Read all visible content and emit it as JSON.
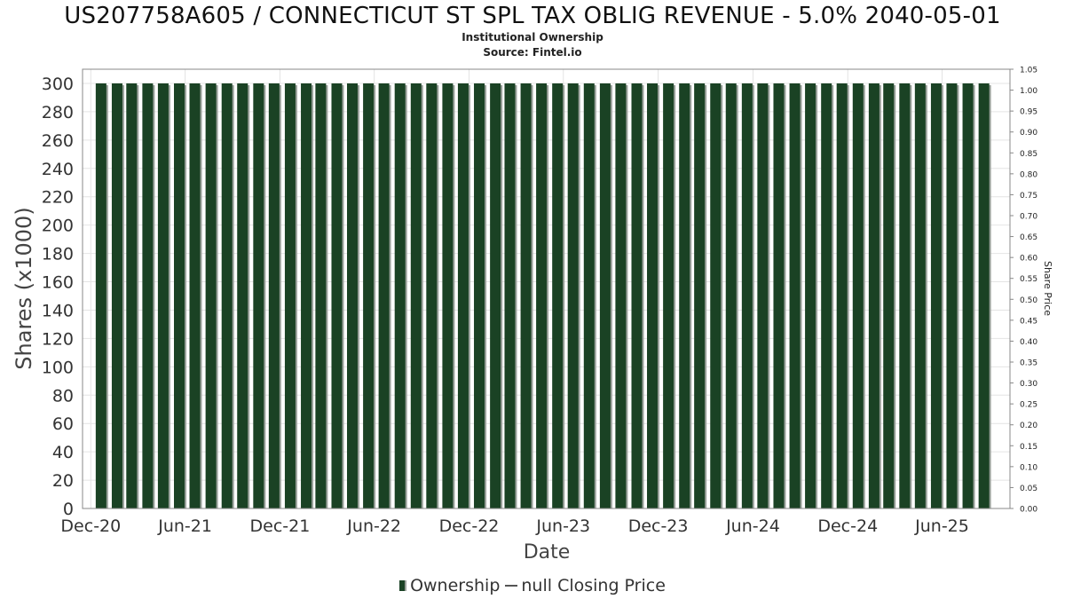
{
  "title": "US207758A605 / CONNECTICUT ST SPL TAX OBLIG REVENUE - 5.0% 2040-05-01",
  "subtitle": "Institutional Ownership",
  "source": "Source: Fintel.io",
  "legend": {
    "ownership": "Ownership",
    "price": "null Closing Price"
  },
  "colors": {
    "bar": "#1a4224",
    "bar_shadow": "#9aa19b",
    "grid": "#e4e4e4",
    "frame": "#888888"
  },
  "chart_data": {
    "type": "bar",
    "xlabel": "Date",
    "ylabel": "Shares (x1000)",
    "y2label": "Share Price",
    "ylim": [
      0,
      310
    ],
    "y2lim": [
      0,
      1.05
    ],
    "x_range": [
      "2020-11-15",
      "2025-10-10"
    ],
    "x_ticks": [
      {
        "date": "2020-12-01",
        "label": "Dec-20"
      },
      {
        "date": "2021-06-01",
        "label": "Jun-21"
      },
      {
        "date": "2021-12-01",
        "label": "Dec-21"
      },
      {
        "date": "2022-06-01",
        "label": "Jun-22"
      },
      {
        "date": "2022-12-01",
        "label": "Dec-22"
      },
      {
        "date": "2023-06-01",
        "label": "Jun-23"
      },
      {
        "date": "2023-12-01",
        "label": "Dec-23"
      },
      {
        "date": "2024-06-01",
        "label": "Jun-24"
      },
      {
        "date": "2024-12-01",
        "label": "Dec-24"
      },
      {
        "date": "2025-06-01",
        "label": "Jun-25"
      }
    ],
    "y_ticks": [
      0,
      20,
      40,
      60,
      80,
      100,
      120,
      140,
      160,
      180,
      200,
      220,
      240,
      260,
      280,
      300
    ],
    "y2_ticks": [
      "0.00",
      "0.05",
      "0.10",
      "0.15",
      "0.20",
      "0.25",
      "0.30",
      "0.35",
      "0.40",
      "0.45",
      "0.50",
      "0.55",
      "0.60",
      "0.65",
      "0.70",
      "0.75",
      "0.80",
      "0.85",
      "0.90",
      "0.95",
      "1.00",
      "1.05"
    ],
    "grid": true,
    "legend_position": "bottom",
    "series": [
      {
        "name": "Ownership",
        "x": [
          "2020-12-31",
          "2021-01-31",
          "2021-02-28",
          "2021-03-31",
          "2021-04-30",
          "2021-05-31",
          "2021-06-30",
          "2021-07-31",
          "2021-08-31",
          "2021-09-30",
          "2021-10-31",
          "2021-11-30",
          "2021-12-31",
          "2022-01-31",
          "2022-02-28",
          "2022-03-31",
          "2022-04-30",
          "2022-05-31",
          "2022-06-30",
          "2022-07-31",
          "2022-08-31",
          "2022-09-30",
          "2022-10-31",
          "2022-11-30",
          "2022-12-31",
          "2023-01-31",
          "2023-02-28",
          "2023-03-31",
          "2023-04-30",
          "2023-05-31",
          "2023-06-30",
          "2023-07-31",
          "2023-08-31",
          "2023-09-30",
          "2023-10-31",
          "2023-11-30",
          "2023-12-31",
          "2024-01-31",
          "2024-02-29",
          "2024-03-31",
          "2024-04-30",
          "2024-05-31",
          "2024-06-30",
          "2024-07-31",
          "2024-08-31",
          "2024-09-30",
          "2024-10-31",
          "2024-11-30",
          "2024-12-31",
          "2025-01-31",
          "2025-02-28",
          "2025-03-31",
          "2025-04-30",
          "2025-05-31",
          "2025-06-30",
          "2025-07-31",
          "2025-08-31"
        ],
        "values": [
          300,
          300,
          300,
          300,
          300,
          300,
          300,
          300,
          300,
          300,
          300,
          300,
          300,
          300,
          300,
          300,
          300,
          300,
          300,
          300,
          300,
          300,
          300,
          300,
          300,
          300,
          300,
          300,
          300,
          300,
          300,
          300,
          300,
          300,
          300,
          300,
          300,
          300,
          300,
          300,
          300,
          300,
          300,
          300,
          300,
          300,
          300,
          300,
          300,
          300,
          300,
          300,
          300,
          300,
          300,
          300,
          300
        ]
      },
      {
        "name": "null Closing Price",
        "x": [
          "2020-11-15",
          "2020-12-31"
        ],
        "values": [
          0,
          0
        ]
      }
    ]
  }
}
